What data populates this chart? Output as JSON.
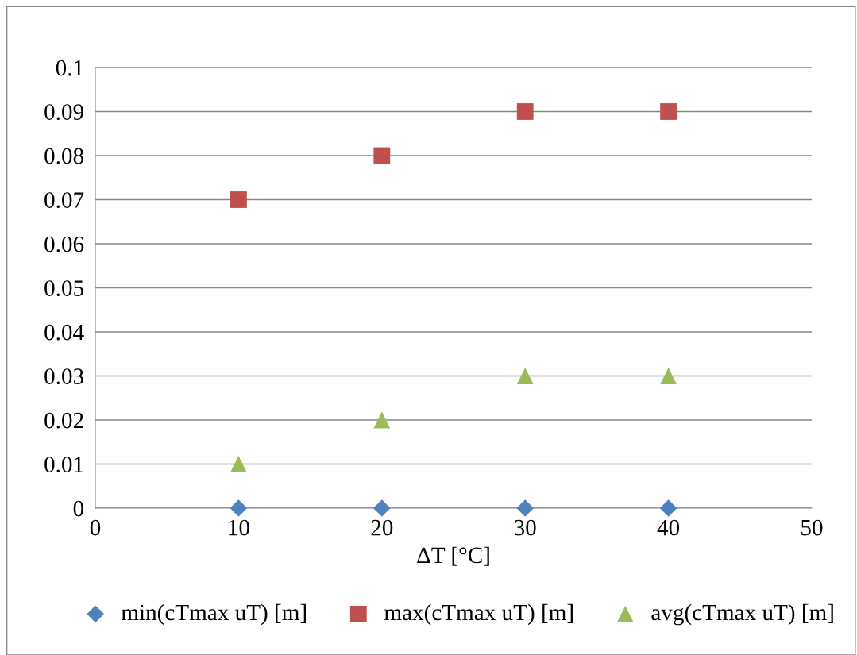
{
  "chart_data": {
    "type": "scatter",
    "xlabel": "ΔT [°C]",
    "xlim": [
      0,
      50
    ],
    "xticks": [
      0,
      10,
      20,
      30,
      40,
      50
    ],
    "ylim": [
      0,
      0.1
    ],
    "yticks": [
      0,
      0.01,
      0.02,
      0.03,
      0.04,
      0.05,
      0.06,
      0.07,
      0.08,
      0.09,
      0.1
    ],
    "grid": "y",
    "legend": "bottom",
    "series": [
      {
        "name": "min(cTmax uT) [m]",
        "color": "#4f81bd",
        "marker": "diamond",
        "x": [
          10,
          20,
          30,
          40
        ],
        "values": [
          0,
          0,
          0,
          0
        ]
      },
      {
        "name": "max(cTmax uT) [m]",
        "color": "#c0504d",
        "marker": "square",
        "x": [
          10,
          20,
          30,
          40
        ],
        "values": [
          0.07,
          0.08,
          0.09,
          0.09
        ]
      },
      {
        "name": "avg(cTmax uT) [m]",
        "color": "#9bbb59",
        "marker": "triangle",
        "x": [
          10,
          20,
          30,
          40
        ],
        "values": [
          0.01,
          0.02,
          0.03,
          0.03
        ]
      }
    ]
  }
}
